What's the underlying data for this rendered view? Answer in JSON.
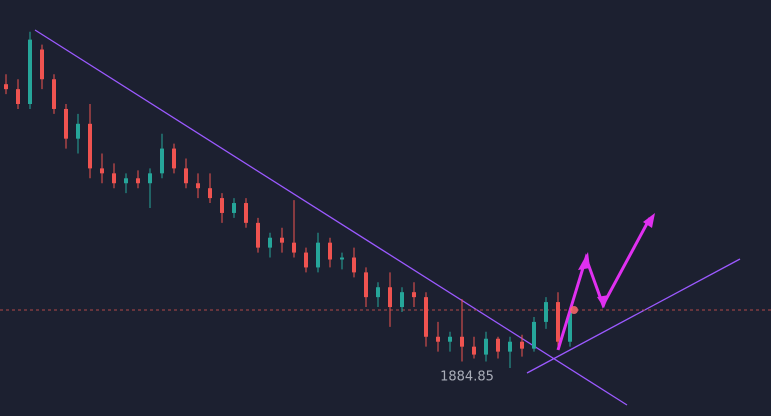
{
  "chart_data": {
    "type": "candlestick",
    "open": [
      1913.5,
      1913.0,
      1911.5,
      1917.0,
      1914.0,
      1911.0,
      1908.0,
      1909.5,
      1905.0,
      1904.5,
      1903.5,
      1904.0,
      1903.5,
      1904.5,
      1907.0,
      1905.0,
      1903.5,
      1903.0,
      1902.0,
      1900.5,
      1901.5,
      1899.5,
      1897.0,
      1898.0,
      1897.5,
      1896.5,
      1895.0,
      1897.5,
      1895.8,
      1896.0,
      1894.5,
      1892.0,
      1893.0,
      1891.0,
      1892.5,
      1892.0,
      1888.0,
      1887.5,
      1888.0,
      1887.0,
      1886.2,
      1887.8,
      1886.5,
      1887.5,
      1886.8,
      1889.5,
      1891.5,
      1887.5
    ],
    "high": [
      1914.5,
      1914.0,
      1918.8,
      1917.5,
      1914.5,
      1911.5,
      1910.5,
      1911.5,
      1906.5,
      1905.5,
      1904.5,
      1904.8,
      1905.0,
      1908.5,
      1907.5,
      1906.0,
      1904.5,
      1904.5,
      1902.5,
      1902.0,
      1902.0,
      1900.0,
      1898.5,
      1899.0,
      1901.8,
      1897.0,
      1898.5,
      1898.0,
      1896.5,
      1897.0,
      1895.0,
      1893.5,
      1894.5,
      1893.0,
      1893.5,
      1892.5,
      1889.5,
      1888.5,
      1891.8,
      1888.0,
      1888.5,
      1888.0,
      1888.0,
      1888.2,
      1890.0,
      1892.0,
      1892.5,
      1890.8
    ],
    "low": [
      1912.5,
      1911.0,
      1911.0,
      1913.0,
      1910.5,
      1907.0,
      1906.5,
      1904.0,
      1903.5,
      1903.0,
      1902.5,
      1903.0,
      1901.0,
      1904.0,
      1904.5,
      1903.0,
      1902.0,
      1901.5,
      1899.5,
      1900.0,
      1899.0,
      1896.5,
      1896.0,
      1896.5,
      1896.0,
      1894.5,
      1894.5,
      1895.0,
      1894.8,
      1894.0,
      1891.0,
      1891.0,
      1889.0,
      1890.5,
      1891.0,
      1887.0,
      1886.5,
      1886.5,
      1885.5,
      1885.8,
      1885.5,
      1885.8,
      1884.85,
      1886.0,
      1886.5,
      1888.8,
      1887.0,
      1887.0
    ],
    "close": [
      1913.0,
      1911.5,
      1918.0,
      1914.0,
      1911.0,
      1908.0,
      1909.5,
      1905.0,
      1904.5,
      1903.5,
      1904.0,
      1903.5,
      1904.5,
      1907.0,
      1905.0,
      1903.5,
      1903.0,
      1902.0,
      1900.5,
      1901.5,
      1899.5,
      1897.0,
      1898.0,
      1897.5,
      1896.5,
      1895.0,
      1897.5,
      1895.8,
      1896.0,
      1894.5,
      1892.0,
      1893.0,
      1891.0,
      1892.5,
      1892.0,
      1888.0,
      1887.5,
      1888.0,
      1887.0,
      1886.2,
      1887.8,
      1886.5,
      1887.5,
      1886.8,
      1889.5,
      1891.5,
      1887.5,
      1890.5
    ],
    "ylim": [
      1880,
      1922
    ],
    "price_line": 1890.7,
    "up_color": "#26a69a",
    "down_color": "#ef5350"
  }
}
